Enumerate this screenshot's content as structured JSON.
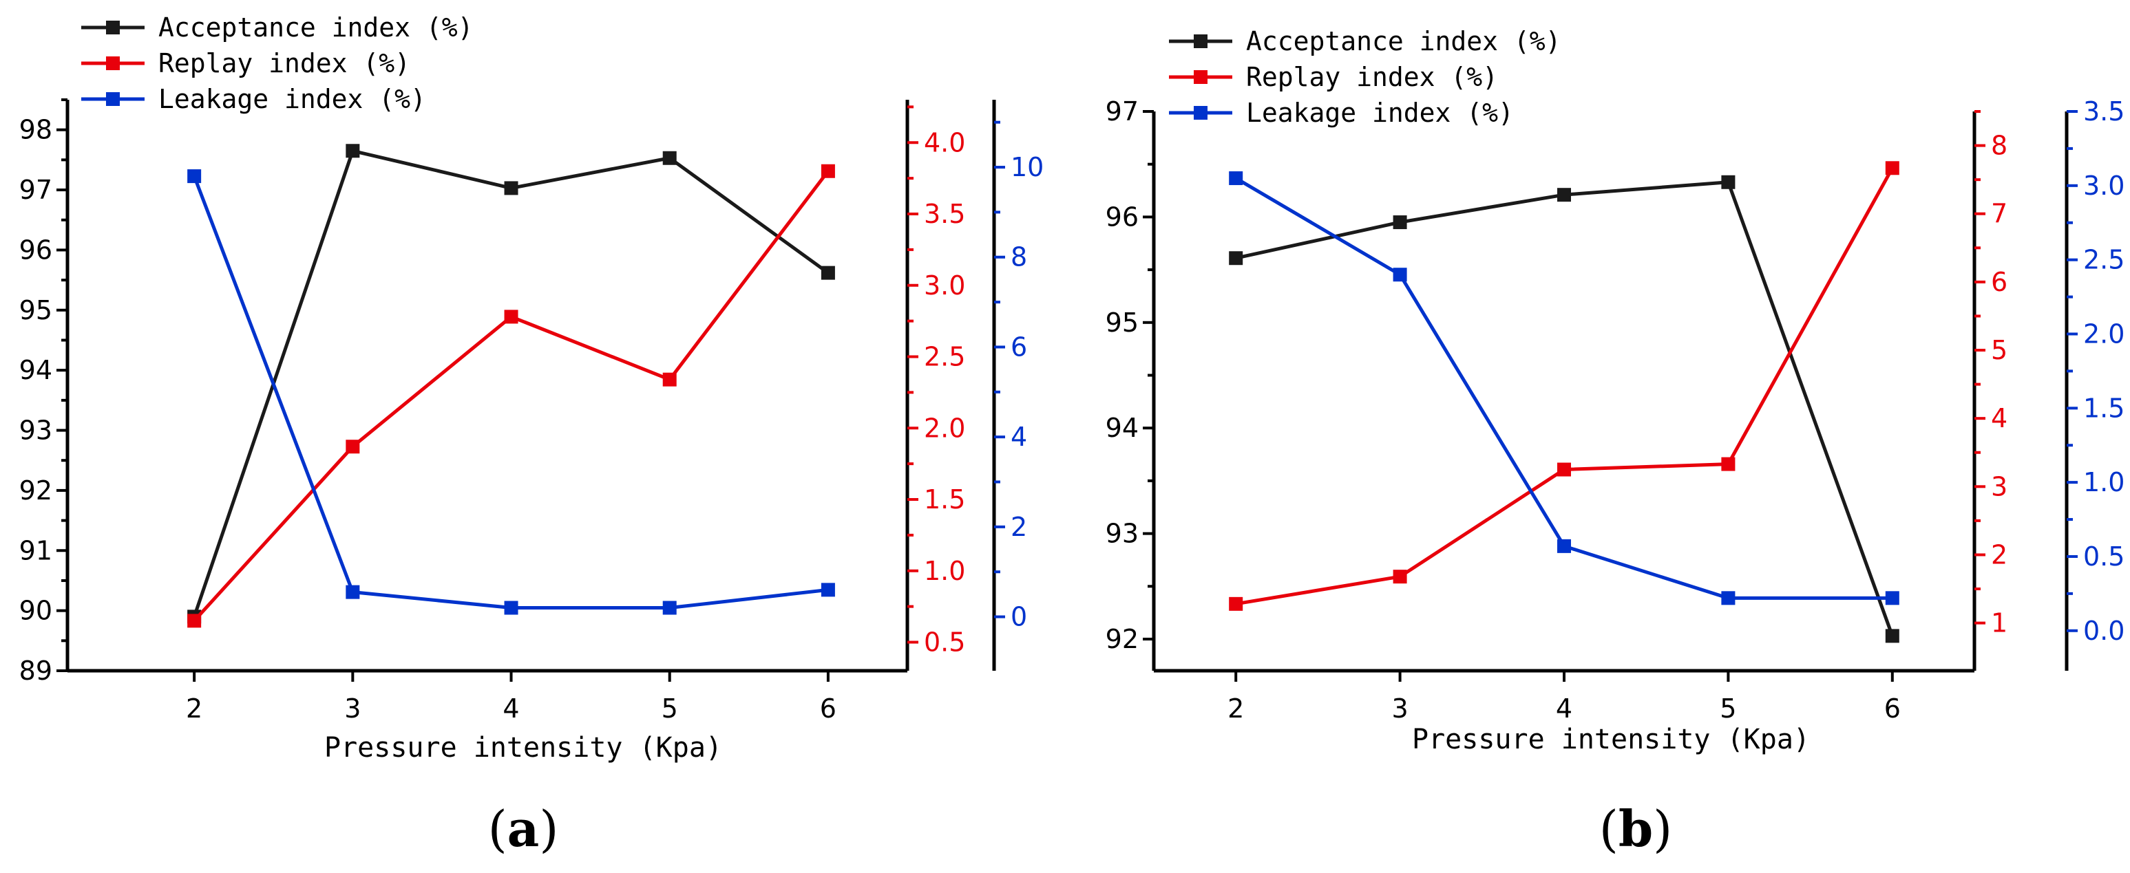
{
  "figure": {
    "labels": {
      "a": "(a)",
      "b": "(b)"
    },
    "label_letters": {
      "a": "a",
      "b": "b"
    }
  },
  "colors": {
    "acceptance": "#1a1a1a",
    "replay": "#e8000b",
    "leakage": "#0033cc",
    "axis": "#000000"
  },
  "chart_data": [
    {
      "id": "a",
      "type": "line",
      "xlabel": "Pressure   intensity   (Kpa)",
      "x": [
        2,
        3,
        4,
        5,
        6
      ],
      "x_ticks": [
        "2",
        "3",
        "4",
        "5",
        "6"
      ],
      "xlim": [
        1.2,
        6.5
      ],
      "legend": [
        "Acceptance   index (%)",
        "Replay   index (%)",
        "Leakage   index (%)"
      ],
      "series": [
        {
          "name": "Acceptance   index (%)",
          "axis": "left",
          "color": "#1a1a1a",
          "values": [
            89.9,
            97.65,
            97.03,
            97.53,
            95.62
          ]
        },
        {
          "name": "Replay   index (%)",
          "axis": "right1",
          "color": "#e8000b",
          "values": [
            0.65,
            1.87,
            2.78,
            2.34,
            3.8
          ]
        },
        {
          "name": "Leakage   index (%)",
          "axis": "right2",
          "color": "#0033cc",
          "values": [
            9.8,
            0.55,
            0.2,
            0.2,
            0.6
          ]
        }
      ],
      "axes": {
        "left": {
          "ylim": [
            89,
            98.5
          ],
          "ticks": [
            "89",
            "90",
            "91",
            "92",
            "93",
            "94",
            "95",
            "96",
            "97",
            "98"
          ],
          "color": "#000000"
        },
        "right1": {
          "ylim": [
            0.3,
            4.3
          ],
          "ticks": [
            "0.5",
            "1.0",
            "1.5",
            "2.0",
            "2.5",
            "3.0",
            "3.5",
            "4.0"
          ],
          "color": "#e8000b"
        },
        "right2": {
          "ylim": [
            -1.2,
            11.5
          ],
          "ticks": [
            "0",
            "2",
            "4",
            "6",
            "8",
            "10"
          ],
          "color": "#0033cc"
        }
      }
    },
    {
      "id": "b",
      "type": "line",
      "xlabel": "Pressure   intensity   (Kpa)",
      "x": [
        2,
        3,
        4,
        5,
        6
      ],
      "x_ticks": [
        "2",
        "3",
        "4",
        "5",
        "6"
      ],
      "xlim": [
        1.5,
        6.5
      ],
      "legend": [
        "Acceptance   index (%)",
        "Replay   index (%)",
        "Leakage   index (%)"
      ],
      "series": [
        {
          "name": "Acceptance   index (%)",
          "axis": "left",
          "color": "#1a1a1a",
          "values": [
            95.61,
            95.95,
            96.21,
            96.33,
            92.03
          ]
        },
        {
          "name": "Replay   index (%)",
          "axis": "right1",
          "color": "#e8000b",
          "values": [
            1.28,
            1.68,
            3.25,
            3.33,
            7.67
          ]
        },
        {
          "name": "Leakage   index (%)",
          "axis": "right2",
          "color": "#0033cc",
          "values": [
            3.05,
            2.4,
            0.57,
            0.22,
            0.22
          ]
        }
      ],
      "axes": {
        "left": {
          "ylim": [
            91.7,
            97
          ],
          "ticks": [
            "92",
            "93",
            "94",
            "95",
            "96",
            "97"
          ],
          "color": "#000000"
        },
        "right1": {
          "ylim": [
            0.3,
            8.5
          ],
          "ticks": [
            "1",
            "2",
            "3",
            "4",
            "5",
            "6",
            "7",
            "8"
          ],
          "color": "#e8000b"
        },
        "right2": {
          "ylim": [
            -0.27,
            3.5
          ],
          "ticks": [
            "0.0",
            "0.5",
            "1.0",
            "1.5",
            "2.0",
            "2.5",
            "3.0",
            "3.5"
          ],
          "color": "#0033cc"
        }
      }
    }
  ]
}
